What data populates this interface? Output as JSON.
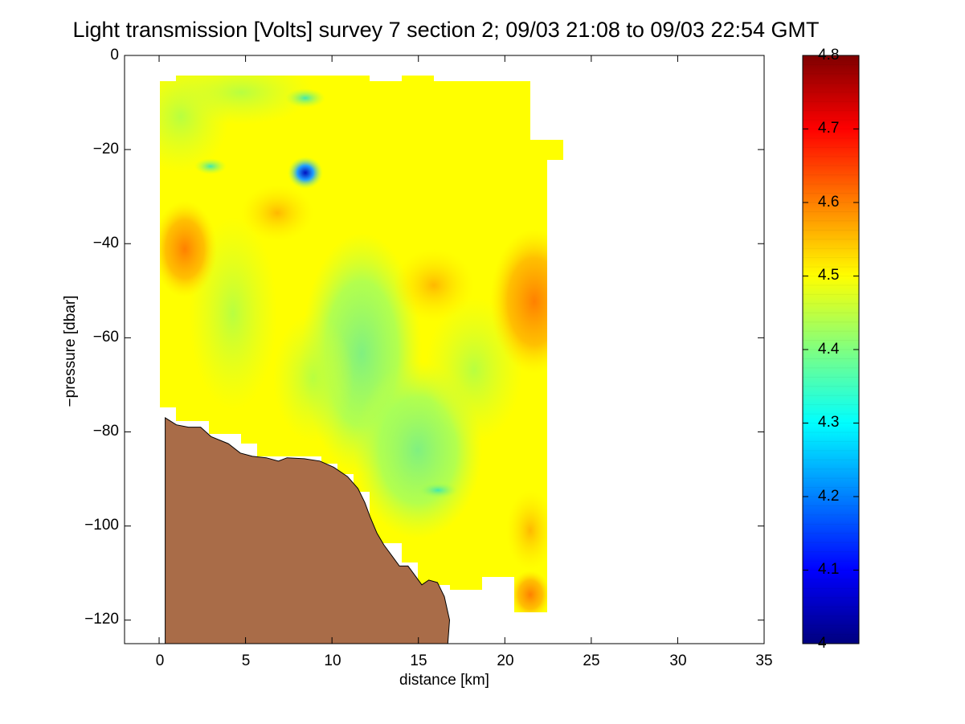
{
  "chart_data": {
    "type": "heatmap",
    "title": "Light transmission [Volts] survey 7 section 2; 09/03 21:08 to 09/03 22:54 GMT",
    "xlabel": "distance [km]",
    "ylabel": "−pressure [dbar]",
    "xlim": [
      -2,
      35
    ],
    "ylim": [
      -125,
      0
    ],
    "xticks": [
      "0",
      "5",
      "10",
      "15",
      "20",
      "25",
      "30",
      "35"
    ],
    "yticks": [
      "0",
      "−20",
      "−40",
      "−60",
      "−80",
      "−100",
      "−120"
    ],
    "colorbar": {
      "range": [
        4,
        4.8
      ],
      "ticks": [
        "4.8",
        "4.7",
        "4.6",
        "4.5",
        "4.4",
        "4.3",
        "4.2",
        "4.1",
        "4"
      ],
      "colormap": "jet"
    },
    "data_extent": {
      "x_km": [
        0,
        23.3
      ],
      "pressure_dbar": [
        -118,
        -5
      ]
    },
    "notable_features": [
      {
        "x": 8.5,
        "y": -25,
        "value": 4.05
      },
      {
        "x": 22,
        "y": -52,
        "value": 4.6
      },
      {
        "x": 1,
        "y": -40,
        "value": 4.55
      },
      {
        "x": 12,
        "y": -65,
        "value": 4.4
      }
    ],
    "seafloor": {
      "fill_color": "#a96c48",
      "profile": [
        {
          "x": 0.35,
          "y": -77
        },
        {
          "x": 1,
          "y": -78.5
        },
        {
          "x": 1.7,
          "y": -79
        },
        {
          "x": 2.4,
          "y": -79
        },
        {
          "x": 3,
          "y": -81
        },
        {
          "x": 4,
          "y": -82.5
        },
        {
          "x": 4.7,
          "y": -84.5
        },
        {
          "x": 5.4,
          "y": -85.2
        },
        {
          "x": 6.2,
          "y": -85.5
        },
        {
          "x": 6.9,
          "y": -86.2
        },
        {
          "x": 7.4,
          "y": -85.5
        },
        {
          "x": 8.4,
          "y": -85.7
        },
        {
          "x": 9.3,
          "y": -86.2
        },
        {
          "x": 10.1,
          "y": -87.5
        },
        {
          "x": 10.9,
          "y": -89.5
        },
        {
          "x": 11.5,
          "y": -92
        },
        {
          "x": 11.9,
          "y": -95
        },
        {
          "x": 12.2,
          "y": -98
        },
        {
          "x": 12.6,
          "y": -101.5
        },
        {
          "x": 13,
          "y": -104
        },
        {
          "x": 13.5,
          "y": -106.5
        },
        {
          "x": 13.9,
          "y": -108.5
        },
        {
          "x": 14.4,
          "y": -108.5
        },
        {
          "x": 14.8,
          "y": -110.5
        },
        {
          "x": 15.2,
          "y": -112.5
        },
        {
          "x": 15.6,
          "y": -111.5
        },
        {
          "x": 16.1,
          "y": -112
        },
        {
          "x": 16.5,
          "y": -115
        },
        {
          "x": 16.8,
          "y": -120
        },
        {
          "x": 16.7,
          "y": -125
        }
      ]
    }
  }
}
